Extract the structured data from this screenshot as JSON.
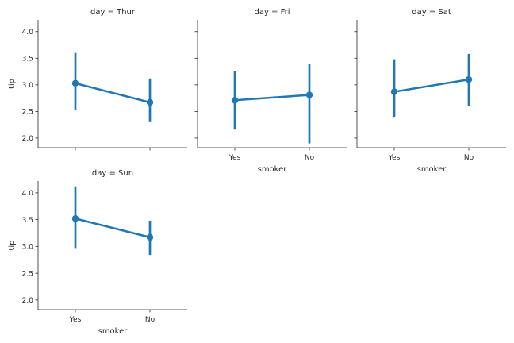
{
  "chart_data": {
    "type": "pointplot",
    "x_label": "smoker",
    "y_label": "tip",
    "categories": [
      "Yes",
      "No"
    ],
    "y_ticks": [
      "2.0",
      "2.5",
      "3.0",
      "3.5",
      "4.0"
    ],
    "ylim": [
      1.82,
      4.22
    ],
    "color": "#1f77b4",
    "grid": false,
    "sharey": true,
    "facets": [
      {
        "title": "day = Thur",
        "points": [
          {
            "x": "Yes",
            "mean": 3.03,
            "ci_low": 2.52,
            "ci_high": 3.6
          },
          {
            "x": "No",
            "mean": 2.67,
            "ci_low": 2.3,
            "ci_high": 3.12
          }
        ]
      },
      {
        "title": "day = Fri",
        "points": [
          {
            "x": "Yes",
            "mean": 2.71,
            "ci_low": 2.16,
            "ci_high": 3.26
          },
          {
            "x": "No",
            "mean": 2.81,
            "ci_low": 1.9,
            "ci_high": 3.39
          }
        ]
      },
      {
        "title": "day = Sat",
        "points": [
          {
            "x": "Yes",
            "mean": 2.87,
            "ci_low": 2.4,
            "ci_high": 3.48
          },
          {
            "x": "No",
            "mean": 3.1,
            "ci_low": 2.61,
            "ci_high": 3.58
          }
        ]
      },
      {
        "title": "day = Sun",
        "points": [
          {
            "x": "Yes",
            "mean": 3.52,
            "ci_low": 2.97,
            "ci_high": 4.12
          },
          {
            "x": "No",
            "mean": 3.17,
            "ci_low": 2.84,
            "ci_high": 3.48
          }
        ]
      }
    ]
  }
}
